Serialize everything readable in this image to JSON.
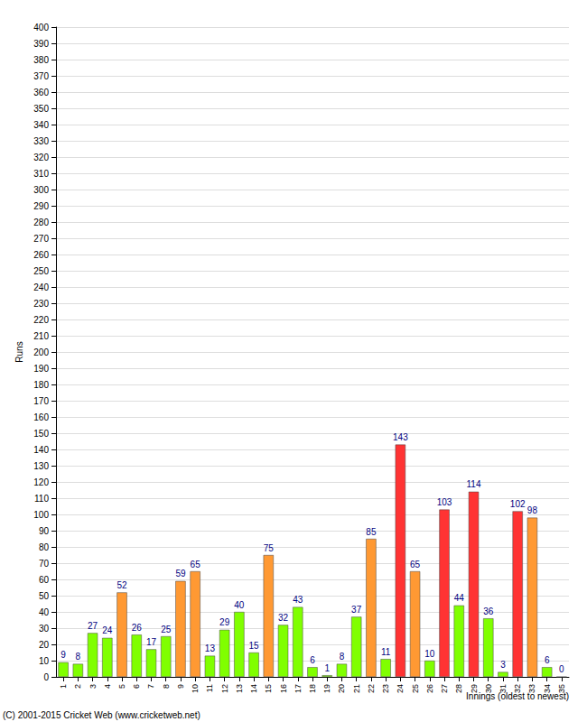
{
  "chart_data": {
    "type": "bar",
    "ylabel": "Runs",
    "xlabel": "Innings (oldest to newest)",
    "annotations": [
      "(C) 2001-2015 Cricket Web (www.cricketweb.net)"
    ],
    "categories": [
      "1",
      "2",
      "3",
      "4",
      "5",
      "6",
      "7",
      "8",
      "9",
      "10",
      "11",
      "12",
      "13",
      "14",
      "15",
      "16",
      "17",
      "18",
      "19",
      "20",
      "21",
      "22",
      "23",
      "24",
      "25",
      "26",
      "27",
      "28",
      "29",
      "30",
      "31",
      "32",
      "33",
      "34",
      "35"
    ],
    "values": [
      9,
      8,
      27,
      24,
      52,
      26,
      17,
      25,
      59,
      65,
      13,
      29,
      40,
      15,
      75,
      32,
      43,
      6,
      1,
      8,
      37,
      85,
      11,
      143,
      65,
      10,
      103,
      44,
      114,
      36,
      3,
      102,
      98,
      6,
      0
    ],
    "colors": [
      "#80ff00",
      "#80ff00",
      "#80ff00",
      "#80ff00",
      "#ff9933",
      "#80ff00",
      "#80ff00",
      "#80ff00",
      "#ff9933",
      "#ff9933",
      "#80ff00",
      "#80ff00",
      "#80ff00",
      "#80ff00",
      "#ff9933",
      "#80ff00",
      "#80ff00",
      "#80ff00",
      "#80ff00",
      "#80ff00",
      "#80ff00",
      "#ff9933",
      "#80ff00",
      "#ff3333",
      "#ff9933",
      "#80ff00",
      "#ff3333",
      "#80ff00",
      "#ff3333",
      "#80ff00",
      "#80ff00",
      "#ff3333",
      "#ff9933",
      "#80ff00",
      "#80ff00"
    ],
    "ylim": [
      0,
      400
    ],
    "yticks": [
      0,
      10,
      20,
      30,
      40,
      50,
      60,
      70,
      80,
      90,
      100,
      110,
      120,
      130,
      140,
      150,
      160,
      170,
      180,
      190,
      200,
      210,
      220,
      230,
      240,
      250,
      260,
      270,
      280,
      290,
      300,
      310,
      320,
      330,
      340,
      350,
      360,
      370,
      380,
      390,
      400
    ],
    "grid": true,
    "data_labels": true
  }
}
